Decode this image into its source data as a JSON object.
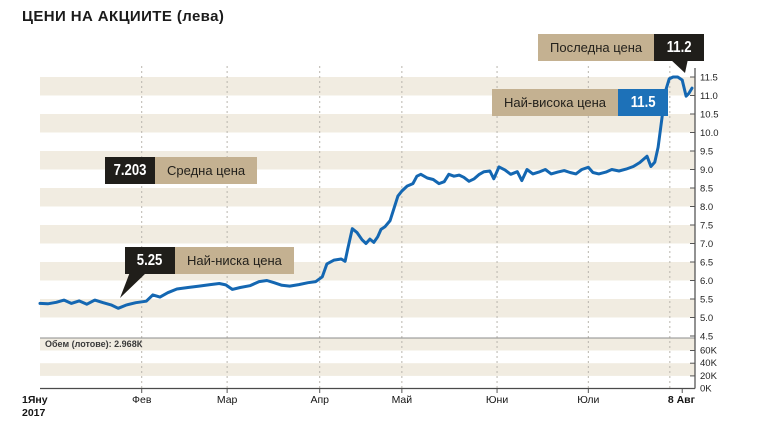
{
  "title": "ЦЕНИ НА АКЦИИТЕ (лева)",
  "badges": {
    "last": {
      "label": "Последна цена",
      "value": "11.2"
    },
    "high": {
      "label": "Най-висока цена",
      "value": "11.5"
    },
    "avg": {
      "label": "Средна цена",
      "value": "7.203"
    },
    "low": {
      "label": "Най-ниска цена",
      "value": "5.25"
    }
  },
  "volume_label": "Обем (лотове): 2.968К",
  "colors": {
    "line": "#1467b2",
    "stripe": "#f1ece1",
    "tan_badge": "#c4b191",
    "black_badge": "#201e1a",
    "blue_badge": "#1d71b8",
    "axis": "#4a4a4a",
    "gridline": "#b9b5ad"
  },
  "chart_data": {
    "type": "line",
    "title": "ЦЕНИ НА АКЦИИТЕ (лева)",
    "unit": "лева",
    "ylabel": "",
    "xlabel": "",
    "ylim": [
      4.5,
      11.5
    ],
    "y_ticks": [
      11.5,
      11.0,
      10.5,
      10.0,
      9.5,
      9.0,
      8.5,
      8.0,
      7.5,
      7.0,
      6.5,
      6.0,
      5.5,
      5.0,
      4.5
    ],
    "volume_ticks": [
      "60K",
      "40K",
      "20K",
      "0K"
    ],
    "x_ticks": [
      {
        "label": "1Яну",
        "label2": "2017",
        "pos": 0.0,
        "bold": true,
        "edge": true
      },
      {
        "label": "Фев",
        "pos": 0.156
      },
      {
        "label": "Мар",
        "pos": 0.287
      },
      {
        "label": "Апр",
        "pos": 0.429
      },
      {
        "label": "Май",
        "pos": 0.555
      },
      {
        "label": "Юни",
        "pos": 0.701
      },
      {
        "label": "Юли",
        "pos": 0.841
      },
      {
        "label": "8 Авг",
        "pos": 0.985,
        "bold": true
      }
    ],
    "grid_pos": [
      0.156,
      0.287,
      0.429,
      0.555,
      0.701,
      0.841,
      0.966
    ],
    "legend": "none",
    "grid": "beige horizontal half-unit stripes, dashed vertical month lines",
    "stats": {
      "last_price": 11.2,
      "highest_price": 11.5,
      "average_price": 7.203,
      "lowest_price": 5.25,
      "volume_lots": "2.968K"
    },
    "series": [
      {
        "name": "Цена (лева)",
        "color": "#1467b2",
        "points": [
          [
            0,
            5.38
          ],
          [
            0.012,
            5.37
          ],
          [
            0.025,
            5.41
          ],
          [
            0.037,
            5.47
          ],
          [
            0.048,
            5.38
          ],
          [
            0.06,
            5.45
          ],
          [
            0.072,
            5.36
          ],
          [
            0.084,
            5.47
          ],
          [
            0.097,
            5.4
          ],
          [
            0.109,
            5.34
          ],
          [
            0.12,
            5.25
          ],
          [
            0.133,
            5.34
          ],
          [
            0.147,
            5.4
          ],
          [
            0.163,
            5.44
          ],
          [
            0.173,
            5.61
          ],
          [
            0.184,
            5.55
          ],
          [
            0.196,
            5.67
          ],
          [
            0.21,
            5.77
          ],
          [
            0.227,
            5.81
          ],
          [
            0.244,
            5.85
          ],
          [
            0.261,
            5.89
          ],
          [
            0.275,
            5.92
          ],
          [
            0.285,
            5.88
          ],
          [
            0.295,
            5.76
          ],
          [
            0.307,
            5.81
          ],
          [
            0.322,
            5.86
          ],
          [
            0.336,
            5.97
          ],
          [
            0.348,
            6.0
          ],
          [
            0.359,
            5.94
          ],
          [
            0.371,
            5.87
          ],
          [
            0.383,
            5.85
          ],
          [
            0.397,
            5.89
          ],
          [
            0.411,
            5.94
          ],
          [
            0.423,
            5.97
          ],
          [
            0.433,
            6.1
          ],
          [
            0.44,
            6.45
          ],
          [
            0.451,
            6.55
          ],
          [
            0.462,
            6.58
          ],
          [
            0.468,
            6.52
          ],
          [
            0.472,
            6.85
          ],
          [
            0.479,
            7.4
          ],
          [
            0.486,
            7.3
          ],
          [
            0.494,
            7.1
          ],
          [
            0.5,
            7.0
          ],
          [
            0.506,
            7.12
          ],
          [
            0.512,
            7.03
          ],
          [
            0.518,
            7.18
          ],
          [
            0.523,
            7.38
          ],
          [
            0.529,
            7.45
          ],
          [
            0.537,
            7.62
          ],
          [
            0.543,
            7.95
          ],
          [
            0.549,
            8.28
          ],
          [
            0.555,
            8.42
          ],
          [
            0.563,
            8.55
          ],
          [
            0.572,
            8.62
          ],
          [
            0.578,
            8.82
          ],
          [
            0.584,
            8.87
          ],
          [
            0.594,
            8.77
          ],
          [
            0.603,
            8.73
          ],
          [
            0.612,
            8.62
          ],
          [
            0.62,
            8.67
          ],
          [
            0.627,
            8.87
          ],
          [
            0.635,
            8.82
          ],
          [
            0.643,
            8.85
          ],
          [
            0.65,
            8.79
          ],
          [
            0.658,
            8.68
          ],
          [
            0.666,
            8.75
          ],
          [
            0.673,
            8.86
          ],
          [
            0.681,
            8.94
          ],
          [
            0.69,
            8.96
          ],
          [
            0.696,
            8.75
          ],
          [
            0.704,
            9.07
          ],
          [
            0.713,
            8.99
          ],
          [
            0.722,
            8.87
          ],
          [
            0.732,
            8.94
          ],
          [
            0.739,
            8.7
          ],
          [
            0.747,
            9.0
          ],
          [
            0.756,
            8.88
          ],
          [
            0.765,
            8.93
          ],
          [
            0.775,
            9.0
          ],
          [
            0.784,
            8.88
          ],
          [
            0.794,
            8.93
          ],
          [
            0.804,
            8.97
          ],
          [
            0.813,
            8.92
          ],
          [
            0.822,
            8.88
          ],
          [
            0.831,
            9.0
          ],
          [
            0.841,
            9.06
          ],
          [
            0.848,
            8.92
          ],
          [
            0.857,
            8.88
          ],
          [
            0.868,
            8.93
          ],
          [
            0.877,
            9.0
          ],
          [
            0.888,
            8.96
          ],
          [
            0.899,
            9.01
          ],
          [
            0.91,
            9.08
          ],
          [
            0.92,
            9.19
          ],
          [
            0.931,
            9.36
          ],
          [
            0.937,
            9.08
          ],
          [
            0.943,
            9.2
          ],
          [
            0.948,
            9.6
          ],
          [
            0.954,
            10.4
          ],
          [
            0.959,
            11.1
          ],
          [
            0.965,
            11.45
          ],
          [
            0.971,
            11.5
          ],
          [
            0.978,
            11.5
          ],
          [
            0.985,
            11.42
          ],
          [
            0.991,
            10.98
          ],
          [
            0.995,
            11.05
          ],
          [
            1,
            11.2
          ]
        ]
      }
    ]
  }
}
